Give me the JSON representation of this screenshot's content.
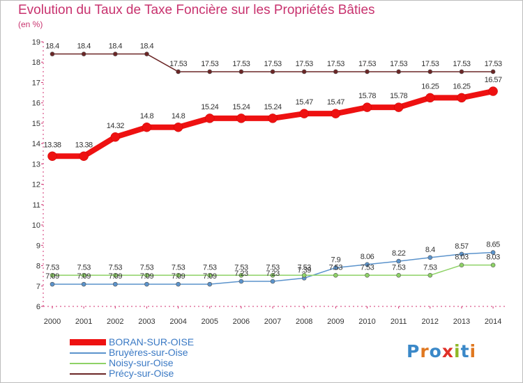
{
  "title": "Evolution du Taux de Taxe Foncière sur les Propriétés Bâties",
  "unit": "(en %)",
  "logo": {
    "text": "Proxiti",
    "letters": [
      "P",
      "r",
      "o",
      "x",
      "i",
      "t",
      "i"
    ],
    "colors": [
      "#3a88c8",
      "#e07820",
      "#3a88c8",
      "#e03028",
      "#90b828",
      "#3a88c8",
      "#e07820"
    ]
  },
  "chart_data": {
    "type": "line",
    "title": "Evolution du Taux de Taxe Foncière sur les Propriétés Bâties",
    "ylabel": "(en %)",
    "ylim": [
      6,
      19
    ],
    "yticks": [
      6,
      7,
      8,
      9,
      10,
      11,
      12,
      13,
      14,
      15,
      16,
      17,
      18,
      19
    ],
    "categories": [
      "2000",
      "2001",
      "2002",
      "2003",
      "2004",
      "2005",
      "2006",
      "2007",
      "2008",
      "2009",
      "2010",
      "2011",
      "2012",
      "2013",
      "2014"
    ],
    "series": [
      {
        "name": "BORAN-SUR-OISE",
        "color": "#ee1111",
        "values": [
          13.38,
          13.38,
          14.32,
          14.8,
          14.8,
          15.24,
          15.24,
          15.24,
          15.47,
          15.47,
          15.78,
          15.78,
          16.25,
          16.25,
          16.57
        ],
        "labels": [
          "13.38",
          "13.38",
          "14.32",
          "14.8",
          "14.8",
          "15.24",
          "15.24",
          "15.24",
          "15.47",
          "15.47",
          "15.78",
          "15.78",
          "16.25",
          "16.25",
          "16.57"
        ]
      },
      {
        "name": "Bruyères-sur-Oise",
        "color": "#5b93cc",
        "values": [
          7.09,
          7.09,
          7.09,
          7.09,
          7.09,
          7.09,
          7.23,
          7.23,
          7.39,
          7.9,
          8.06,
          8.22,
          8.4,
          8.57,
          8.65
        ],
        "labels": [
          "7.09",
          "7.09",
          "7.09",
          "7.09",
          "7.09",
          "7.09",
          "7.23",
          "7.23",
          "7.39",
          "7.9",
          "8.06",
          "8.22",
          "8.4",
          "8.57",
          "8.65"
        ]
      },
      {
        "name": "Noisy-sur-Oise",
        "color": "#8ed266",
        "values": [
          7.53,
          7.53,
          7.53,
          7.53,
          7.53,
          7.53,
          7.53,
          7.53,
          7.53,
          7.53,
          7.53,
          7.53,
          7.53,
          8.03,
          8.03
        ],
        "labels": [
          "7.53",
          "7.53",
          "7.53",
          "7.53",
          "7.53",
          "7.53",
          "7.53",
          "7.53",
          "7.53",
          "7.53",
          "7.53",
          "7.53",
          "7.53",
          "8.03",
          "8.03"
        ]
      },
      {
        "name": "Précy-sur-Oise",
        "color": "#6b2626",
        "values": [
          18.4,
          18.4,
          18.4,
          18.4,
          17.53,
          17.53,
          17.53,
          17.53,
          17.53,
          17.53,
          17.53,
          17.53,
          17.53,
          17.53,
          17.53
        ],
        "labels": [
          "18.4",
          "18.4",
          "18.4",
          "18.4",
          "17.53",
          "17.53",
          "17.53",
          "17.53",
          "17.53",
          "17.53",
          "17.53",
          "17.53",
          "17.53",
          "17.53",
          "17.53"
        ]
      }
    ]
  }
}
